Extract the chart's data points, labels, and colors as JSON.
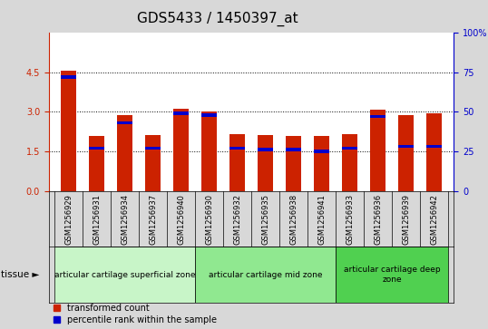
{
  "title": "GDS5433 / 1450397_at",
  "samples": [
    "GSM1256929",
    "GSM1256931",
    "GSM1256934",
    "GSM1256937",
    "GSM1256940",
    "GSM1256930",
    "GSM1256932",
    "GSM1256935",
    "GSM1256938",
    "GSM1256941",
    "GSM1256933",
    "GSM1256936",
    "GSM1256939",
    "GSM1256942"
  ],
  "transformed_count": [
    4.55,
    2.1,
    2.87,
    2.12,
    3.12,
    3.02,
    2.15,
    2.13,
    2.08,
    2.1,
    2.17,
    3.07,
    2.88,
    2.95
  ],
  "percentile_rank_pct": [
    72,
    27,
    43,
    27,
    49,
    48,
    27,
    26,
    26,
    25,
    27,
    47,
    28,
    28
  ],
  "ylim_left": [
    0,
    6
  ],
  "ylim_right": [
    0,
    100
  ],
  "yticks_left": [
    0,
    1.5,
    3.0,
    4.5
  ],
  "yticks_right": [
    0,
    25,
    50,
    75,
    100
  ],
  "tissue_groups": [
    {
      "label": "articular cartilage superficial zone",
      "start": 0,
      "end": 5,
      "color": "#c8f5c8"
    },
    {
      "label": "articular cartilage mid zone",
      "start": 5,
      "end": 10,
      "color": "#90e890"
    },
    {
      "label": "articular cartilage deep\nzone",
      "start": 10,
      "end": 14,
      "color": "#50d050"
    }
  ],
  "bar_color": "#cc2200",
  "blue_color": "#0000cc",
  "bg_color": "#d8d8d8",
  "plot_bg": "#ffffff",
  "left_axis_color": "#cc2200",
  "right_axis_color": "#0000cc",
  "bar_width": 0.55,
  "legend_red": "transformed count",
  "legend_blue": "percentile rank within the sample",
  "title_fontsize": 11,
  "tick_fontsize": 7,
  "label_fontsize": 7
}
